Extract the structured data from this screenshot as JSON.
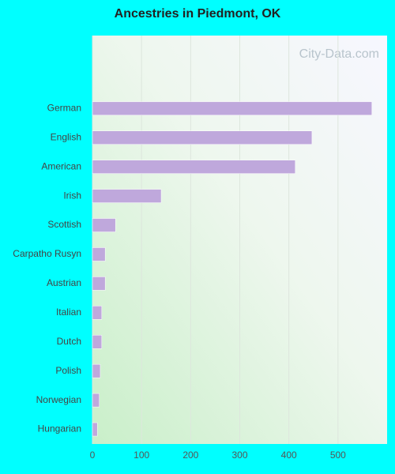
{
  "chart_data": {
    "type": "hbar",
    "title": "Ancestries in Piedmont, OK",
    "watermark": "City-Data.com",
    "categories": [
      "German",
      "English",
      "American",
      "Irish",
      "Scottish",
      "Carpatho Rusyn",
      "Austrian",
      "Italian",
      "Dutch",
      "Polish",
      "Norwegian",
      "Hungarian"
    ],
    "values": [
      569,
      447,
      413,
      140,
      47,
      26,
      26,
      19,
      19,
      16,
      14,
      10
    ],
    "color": "#bfa8dc",
    "xlim": [
      0,
      600
    ],
    "xticks": [
      0,
      100,
      200,
      300,
      400,
      500
    ],
    "grid": true
  }
}
